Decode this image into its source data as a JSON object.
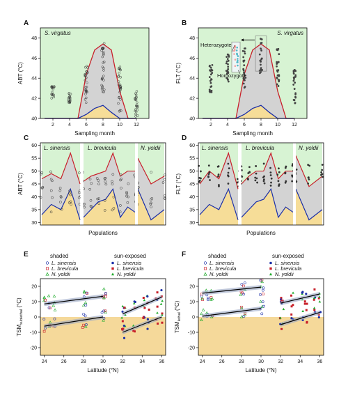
{
  "colors": {
    "green_bg": "#d7f3d3",
    "gray_fill": "#d3d3d3",
    "yellow_fill": "#f6dd98",
    "tan_bg": "#f5d99a",
    "red": "#c8202a",
    "blue": "#1b2fa8",
    "black": "#111111",
    "pink": "#f2a2a2",
    "teal": "#4fb7c7"
  },
  "chart_data": [
    {
      "panel": "A",
      "type": "scatter",
      "species_label": "S. virgatus",
      "xlabel": "Sampling month",
      "ylabel": "ABT (°C)",
      "xlim": [
        0.5,
        13.5
      ],
      "ylim": [
        40,
        49
      ],
      "xticks": [
        2,
        4,
        6,
        8,
        10,
        12
      ],
      "yticks": [
        40,
        42,
        44,
        46,
        48
      ],
      "upper_line": {
        "x": [
          1,
          2,
          3,
          4,
          5,
          6,
          7,
          8,
          9,
          10,
          11,
          12
        ],
        "y": [
          40,
          40,
          40,
          40,
          40,
          44.4,
          46.8,
          47.4,
          46.8,
          42.7,
          40,
          40
        ]
      },
      "lower_line": {
        "x": [
          1,
          2,
          3,
          4,
          5,
          6,
          7,
          8,
          9,
          10,
          11,
          12
        ],
        "y": [
          40,
          40,
          40,
          40,
          40,
          40.4,
          41.0,
          41.3,
          40.6,
          40,
          40,
          40
        ]
      },
      "point_months": [
        2,
        4,
        6,
        8,
        10,
        12
      ],
      "point_ranges": [
        [
          42,
          43.2
        ],
        [
          41.5,
          42.5
        ],
        [
          41.5,
          45.5
        ],
        [
          42.5,
          47.5
        ],
        [
          40.5,
          45.5
        ],
        [
          40.2,
          42.8
        ]
      ]
    },
    {
      "panel": "B",
      "type": "scatter",
      "species_label": "S. virgatus",
      "xlabel": "Sampling month",
      "ylabel": "FLT (°C)",
      "xlim": [
        0.5,
        13.5
      ],
      "ylim": [
        40,
        49
      ],
      "xticks": [
        2,
        4,
        6,
        8,
        10,
        12
      ],
      "yticks": [
        40,
        42,
        44,
        46,
        48
      ],
      "upper_line": {
        "x": [
          1,
          2,
          3,
          4,
          5,
          6,
          7,
          8,
          9,
          10,
          11,
          12
        ],
        "y": [
          40,
          40,
          40,
          40,
          40,
          44.4,
          46.8,
          47.4,
          46.8,
          42.7,
          40,
          40
        ]
      },
      "lower_line": {
        "x": [
          1,
          2,
          3,
          4,
          5,
          6,
          7,
          8,
          9,
          10,
          11,
          12
        ],
        "y": [
          40,
          40,
          40,
          40,
          40,
          40.4,
          41.0,
          41.3,
          40.6,
          40,
          40,
          40
        ]
      },
      "point_months": [
        2,
        4,
        6,
        8,
        10,
        12
      ],
      "point_ranges": [
        [
          42.5,
          45.5
        ],
        [
          43.5,
          46.5
        ],
        [
          43.0,
          47.0
        ],
        [
          44.5,
          48.0
        ],
        [
          43.0,
          47.0
        ],
        [
          41.5,
          45.0
        ]
      ],
      "annotations": [
        "Heterozygote",
        "Homozygote"
      ]
    },
    {
      "panel": "C",
      "type": "scatter",
      "xlabel": "Populations",
      "ylabel": "ABT (°C)",
      "ylim": [
        29,
        61
      ],
      "yticks": [
        30,
        35,
        40,
        45,
        50,
        55,
        60
      ],
      "species": [
        "L. sinensis",
        "L. brevicula",
        "N. yoldii"
      ],
      "upper_line": [
        47,
        49,
        47,
        57,
        45,
        46,
        48,
        49,
        50,
        57,
        48,
        50,
        50,
        55,
        45,
        48
      ],
      "lower_line": [
        33,
        37,
        35,
        43,
        31,
        32,
        35,
        38,
        39,
        43,
        32,
        36,
        34,
        43,
        31,
        35
      ]
    },
    {
      "panel": "D",
      "type": "scatter",
      "xlabel": "Populations",
      "ylabel": "FLT (°C)",
      "ylim": [
        29,
        61
      ],
      "yticks": [
        30,
        35,
        40,
        45,
        50,
        55,
        60
      ],
      "species": [
        "L. sinensis",
        "L. brevicula",
        "N. yoldii"
      ],
      "upper_line": [
        45,
        50,
        47,
        57,
        43,
        45,
        48,
        50,
        50,
        57,
        47,
        50,
        50,
        56,
        44,
        48
      ],
      "lower_line": [
        33,
        37,
        35,
        43,
        31,
        32,
        35,
        38,
        39,
        43,
        32,
        36,
        34,
        43,
        31,
        35
      ]
    },
    {
      "panel": "E",
      "type": "scatter",
      "xlabel": "Latitude (°N)",
      "ylabel": "TSM",
      "ylabel_subscript": "sublethal",
      "ylabel_unit": "(°C)",
      "xlim": [
        23.6,
        36.4
      ],
      "ylim": [
        -25,
        25
      ],
      "xticks": [
        24,
        26,
        28,
        30,
        32,
        34,
        36
      ],
      "yticks": [
        -20,
        -10,
        0,
        10,
        20
      ],
      "groups": [
        "shaded",
        "sun-exposed"
      ],
      "series": [
        "L. sinensis",
        "L. brevicula",
        "N. yoldii"
      ],
      "regressions": [
        {
          "x": [
            24,
            30
          ],
          "y": [
            8.5,
            13.5
          ]
        },
        {
          "x": [
            24,
            30
          ],
          "y": [
            -6,
            0
          ]
        },
        {
          "x": [
            32,
            36
          ],
          "y": [
            2,
            13
          ]
        },
        {
          "x": [
            32,
            36
          ],
          "y": [
            -10,
            0
          ]
        }
      ]
    },
    {
      "panel": "F",
      "type": "scatter",
      "xlabel": "Latitude (°N)",
      "ylabel": "TSM",
      "ylabel_subscript": "lethal",
      "ylabel_unit": "(°C)",
      "xlim": [
        23.6,
        36.4
      ],
      "ylim": [
        -25,
        25
      ],
      "xticks": [
        24,
        26,
        28,
        30,
        32,
        34,
        36
      ],
      "yticks": [
        -20,
        -10,
        0,
        10,
        20
      ],
      "groups": [
        "shaded",
        "sun-exposed"
      ],
      "series": [
        "L. sinensis",
        "L. brevicula",
        "N. yoldii"
      ],
      "regressions": [
        {
          "x": [
            24,
            30
          ],
          "y": [
            15.5,
            19.5
          ]
        },
        {
          "x": [
            24,
            30
          ],
          "y": [
            0.5,
            5.5
          ]
        },
        {
          "x": [
            32,
            36
          ],
          "y": [
            9,
            15
          ]
        },
        {
          "x": [
            32,
            36
          ],
          "y": [
            -5,
            3
          ]
        }
      ]
    }
  ]
}
